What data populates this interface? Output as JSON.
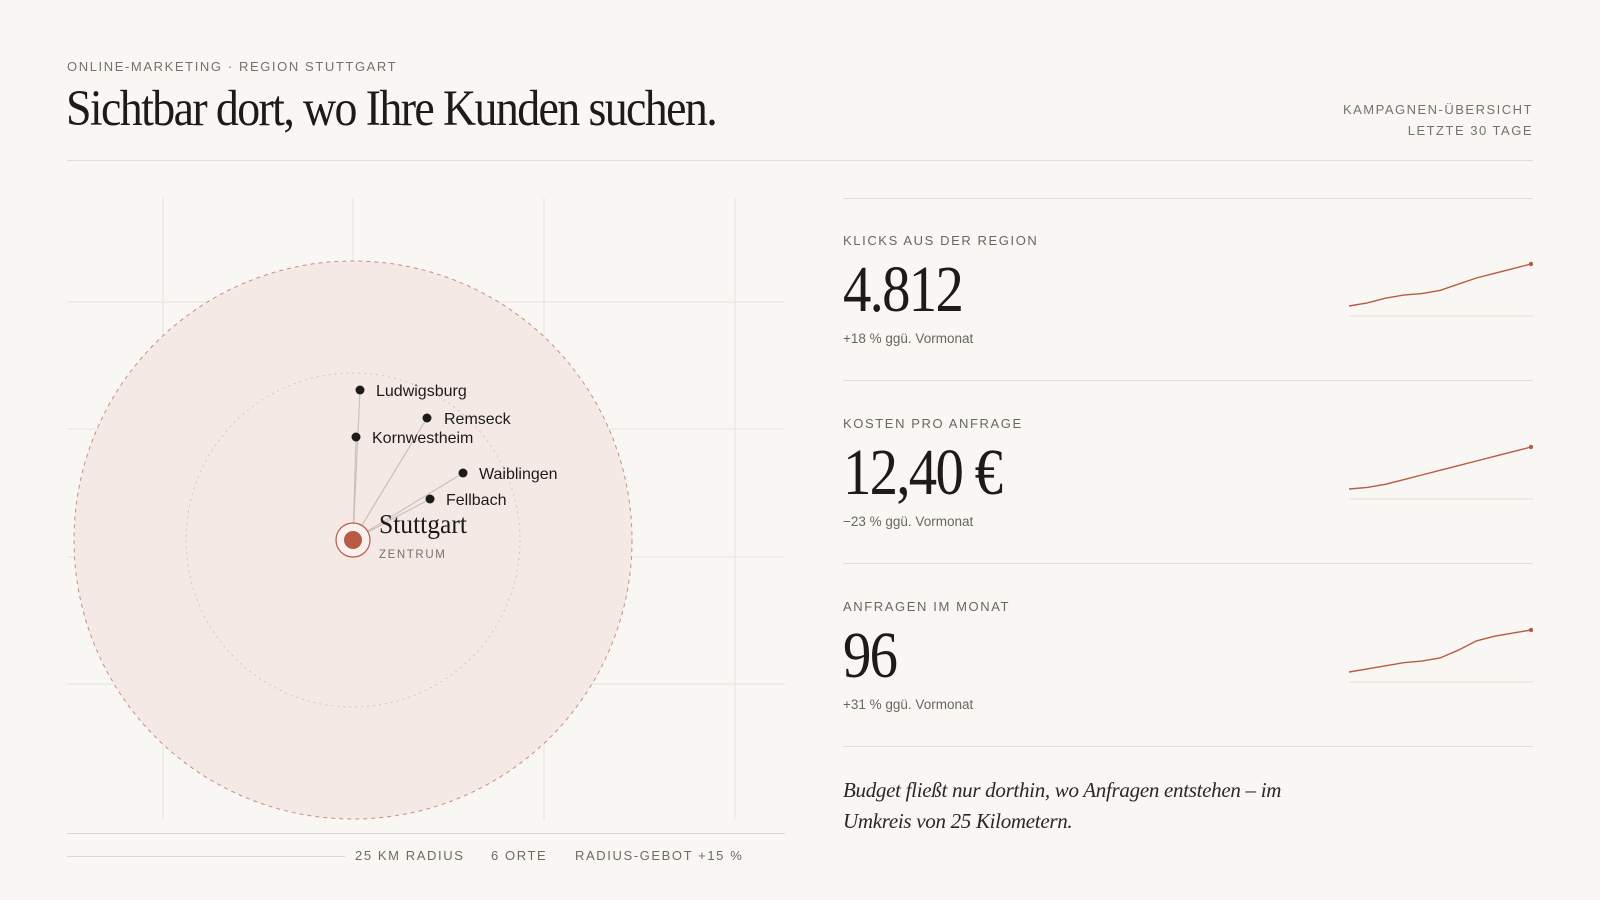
{
  "header": {
    "eyebrow": "ONLINE-MARKETING · REGION STUTTGART",
    "title": "Sichtbar dort, wo Ihre Kunden suchen.",
    "overview_line1": "KAMPAGNEN-ÜBERSICHT",
    "overview_line2": "LETZTE 30 TAGE"
  },
  "map": {
    "center": {
      "name": "Stuttgart",
      "sublabel": "ZENTRUM"
    },
    "places": [
      {
        "name": "Ludwigsburg"
      },
      {
        "name": "Remseck"
      },
      {
        "name": "Kornwestheim"
      },
      {
        "name": "Waiblingen"
      },
      {
        "name": "Fellbach"
      }
    ],
    "footer": {
      "radius": "25 KM RADIUS",
      "places_count": "6 ORTE",
      "bid": "RADIUS-GEBOT +15 %"
    },
    "colors": {
      "accent": "#b85a44",
      "zone_fill": "#f5e9e6",
      "dot": "#1d1b19"
    }
  },
  "metrics": [
    {
      "label": "KLICKS AUS DER REGION",
      "value": "4.812",
      "delta": "+18 % ggü. Vormonat",
      "trend": [
        10,
        11,
        12.5,
        13.5,
        14,
        15,
        17,
        19,
        20.5,
        22,
        23.5
      ]
    },
    {
      "label": "KOSTEN PRO ANFRAGE",
      "value": "12,40 €",
      "delta": "−23 % ggü. Vormonat",
      "trend": [
        10,
        10.5,
        11.5,
        13,
        14.5,
        16,
        17.5,
        19,
        20.5,
        22,
        23.5
      ]
    },
    {
      "label": "ANFRAGEN IM MONAT",
      "value": "96",
      "delta": "+31 % ggü. Vormonat",
      "trend": [
        10,
        11,
        12,
        13,
        13.5,
        14.5,
        17,
        20,
        21.5,
        22.5,
        23.5
      ]
    }
  ],
  "note": "Budget fließt nur dorthin, wo Anfragen entstehen – im Umkreis von 25 Kilometern."
}
